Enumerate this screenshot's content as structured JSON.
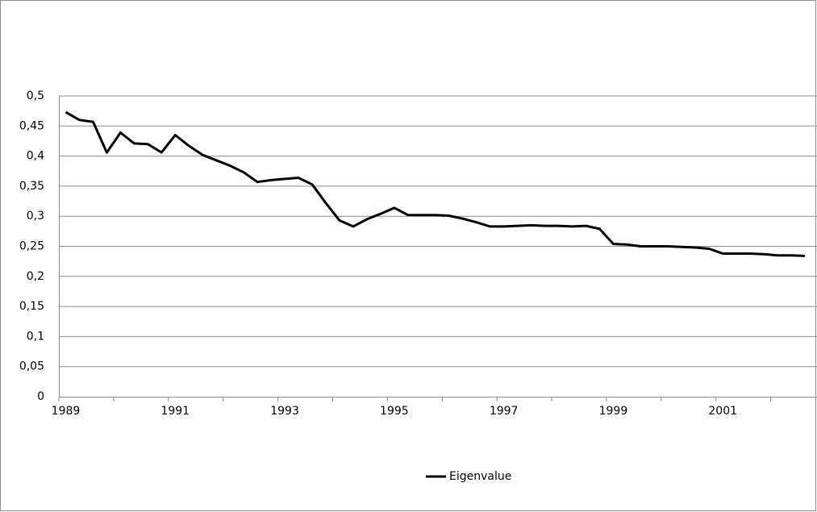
{
  "chart_data": {
    "type": "line",
    "x": [
      1989,
      1989.25,
      1989.5,
      1989.75,
      1990,
      1990.25,
      1990.5,
      1990.75,
      1991,
      1991.25,
      1991.5,
      1991.75,
      1992,
      1992.25,
      1992.5,
      1992.75,
      1993,
      1993.25,
      1993.5,
      1993.75,
      1994,
      1994.25,
      1994.5,
      1994.75,
      1995,
      1995.25,
      1995.5,
      1995.75,
      1996,
      1996.25,
      1996.5,
      1996.75,
      1997,
      1997.25,
      1997.5,
      1997.75,
      1998,
      1998.25,
      1998.5,
      1998.75,
      1999,
      1999.25,
      1999.5,
      1999.75,
      2000,
      2000.25,
      2000.5,
      2000.75,
      2001,
      2001.25,
      2001.5,
      2001.75,
      2002,
      2002.25,
      2002.5
    ],
    "series": [
      {
        "name": "Eigenvalue",
        "color": "#000000",
        "values": [
          0.473,
          0.46,
          0.457,
          0.406,
          0.439,
          0.421,
          0.42,
          0.406,
          0.435,
          0.417,
          0.402,
          0.393,
          0.384,
          0.373,
          0.357,
          0.36,
          0.362,
          0.364,
          0.353,
          0.322,
          0.293,
          0.283,
          0.295,
          0.304,
          0.314,
          0.302,
          0.302,
          0.302,
          0.301,
          0.296,
          0.29,
          0.283,
          0.283,
          0.284,
          0.285,
          0.284,
          0.284,
          0.283,
          0.284,
          0.279,
          0.254,
          0.253,
          0.25,
          0.25,
          0.25,
          0.249,
          0.248,
          0.246,
          0.238,
          0.238,
          0.238,
          0.237,
          0.235,
          0.235,
          0.234
        ]
      }
    ],
    "xlim": [
      1988.875,
      2002.72
    ],
    "xticks": [
      1989,
      1991,
      1993,
      1995,
      1997,
      1999,
      2001
    ],
    "xminor_ticks": [
      1990,
      1992,
      1994,
      1996,
      1998,
      2000,
      2002
    ],
    "ylim": [
      0,
      0.5
    ],
    "yticks": [
      0,
      {
        "value": 0.05,
        "label": "0,05"
      },
      {
        "value": 0.1,
        "label": "0,1"
      },
      {
        "value": 0.15,
        "label": "0,15"
      },
      {
        "value": 0.2,
        "label": "0,2"
      },
      {
        "value": 0.25,
        "label": "0,25"
      },
      {
        "value": 0.3,
        "label": "0,3"
      },
      {
        "value": 0.35,
        "label": "0,35"
      },
      {
        "value": 0.4,
        "label": "0,4"
      },
      {
        "value": 0.45,
        "label": "0,45"
      },
      {
        "value": 0.5,
        "label": "0,5"
      }
    ],
    "grid": true,
    "legend": "bottom"
  }
}
